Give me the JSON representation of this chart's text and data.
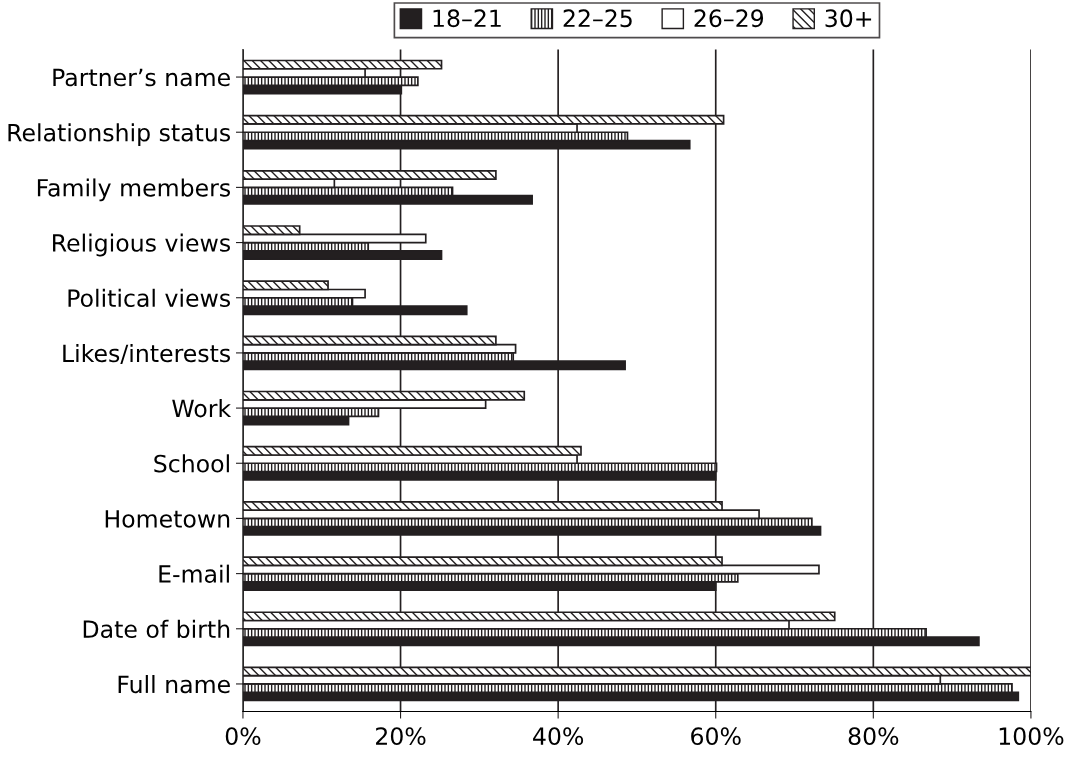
{
  "chart_data": {
    "type": "bar",
    "orientation": "horizontal",
    "categories": [
      "Partner’s name",
      "Relationship status",
      "Family members",
      "Religious views",
      "Political views",
      "Likes/interests",
      "Work",
      "School",
      "Hometown",
      "E-mail",
      "Date of birth",
      "Full name"
    ],
    "series": [
      {
        "name": "18–21",
        "color": "#231f20",
        "values": [
          20.1,
          56.7,
          36.7,
          25.2,
          28.4,
          48.5,
          13.4,
          60.0,
          73.3,
          60.0,
          93.4,
          98.4
        ]
      },
      {
        "name": "22–25",
        "color": "#231f20",
        "values": [
          22.2,
          48.8,
          26.6,
          15.9,
          13.9,
          34.3,
          17.2,
          60.1,
          72.2,
          62.8,
          86.7,
          97.6
        ]
      },
      {
        "name": "26–29",
        "color": "#231f20",
        "values": [
          15.5,
          42.4,
          11.6,
          23.2,
          15.5,
          34.6,
          30.8,
          42.4,
          65.5,
          73.1,
          69.3,
          88.5
        ]
      },
      {
        "name": "30+",
        "color": "#231f20",
        "values": [
          25.2,
          61.0,
          32.1,
          7.2,
          10.8,
          32.1,
          35.7,
          42.9,
          60.8,
          60.8,
          75.1,
          100
        ]
      }
    ],
    "xlim": [
      0,
      100
    ],
    "xticks": [
      {
        "value": 0,
        "label": "0%"
      },
      {
        "value": 20,
        "label": "20%"
      },
      {
        "value": 40,
        "label": "40%"
      },
      {
        "value": 60,
        "label": "60%"
      },
      {
        "value": 80,
        "label": "80%"
      },
      {
        "value": 100,
        "label": "100%"
      }
    ],
    "grid": "x",
    "legend": "top"
  }
}
